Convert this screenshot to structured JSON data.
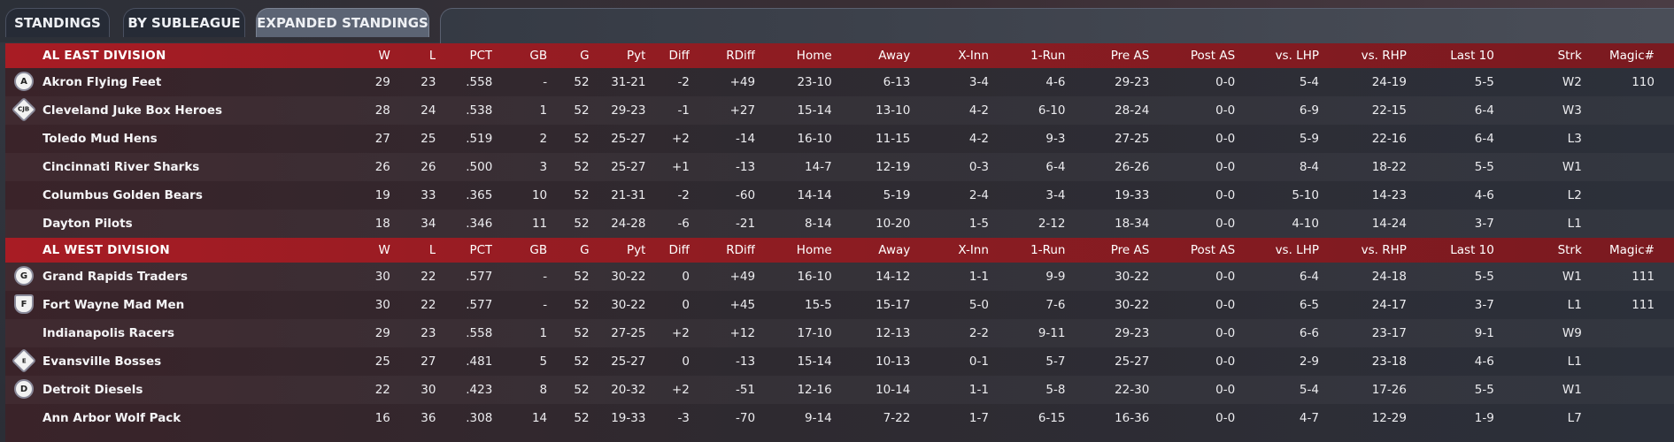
{
  "tabs": [
    {
      "label": "STANDINGS",
      "active": false
    },
    {
      "label": "BY SUBLEAGUE",
      "active": false
    },
    {
      "label": "EXPANDED STANDINGS",
      "active": true
    }
  ],
  "columns": [
    "W",
    "L",
    "PCT",
    "GB",
    "G",
    "Pyt",
    "Diff",
    "RDiff",
    "Home",
    "Away",
    "X-Inn",
    "1-Run",
    "Pre AS",
    "Post AS",
    "vs. LHP",
    "vs. RHP",
    "Last 10",
    "Strk",
    "Magic#"
  ],
  "colors": {
    "header_red": "#a81c24",
    "positive": "#4ee06a",
    "negative": "#f0605c"
  },
  "divisions": [
    {
      "name": "AL EAST DIVISION",
      "teams": [
        {
          "name": "Akron  Flying Feet",
          "logo": "A",
          "logo_shape": "circle",
          "W": "29",
          "L": "23",
          "PCT": ".558",
          "GB": "-",
          "G": "52",
          "Pyt": "31-21",
          "Diff": "-2",
          "RDiff": "+49",
          "Home": "23-10",
          "Away": "6-13",
          "X-Inn": "3-4",
          "1-Run": "4-6",
          "Pre AS": "29-23",
          "Post AS": "0-0",
          "vs. LHP": "5-4",
          "vs. RHP": "24-19",
          "Last 10": "5-5",
          "Strk": "W2",
          "Magic#": "110"
        },
        {
          "name": "Cleveland Juke Box Heroes",
          "logo": "CJB",
          "logo_shape": "diamond",
          "W": "28",
          "L": "24",
          "PCT": ".538",
          "GB": "1",
          "G": "52",
          "Pyt": "29-23",
          "Diff": "-1",
          "RDiff": "+27",
          "Home": "15-14",
          "Away": "13-10",
          "X-Inn": "4-2",
          "1-Run": "6-10",
          "Pre AS": "28-24",
          "Post AS": "0-0",
          "vs. LHP": "6-9",
          "vs. RHP": "22-15",
          "Last 10": "6-4",
          "Strk": "W3",
          "Magic#": ""
        },
        {
          "name": "Toledo  Mud Hens",
          "logo": "",
          "logo_shape": "none",
          "W": "27",
          "L": "25",
          "PCT": ".519",
          "GB": "2",
          "G": "52",
          "Pyt": "25-27",
          "Diff": "+2",
          "RDiff": "-14",
          "Home": "16-10",
          "Away": "11-15",
          "X-Inn": "4-2",
          "1-Run": "9-3",
          "Pre AS": "27-25",
          "Post AS": "0-0",
          "vs. LHP": "5-9",
          "vs. RHP": "22-16",
          "Last 10": "6-4",
          "Strk": "L3",
          "Magic#": ""
        },
        {
          "name": "Cincinnati River Sharks",
          "logo": "",
          "logo_shape": "none",
          "W": "26",
          "L": "26",
          "PCT": ".500",
          "GB": "3",
          "G": "52",
          "Pyt": "25-27",
          "Diff": "+1",
          "RDiff": "-13",
          "Home": "14-7",
          "Away": "12-19",
          "X-Inn": "0-3",
          "1-Run": "6-4",
          "Pre AS": "26-26",
          "Post AS": "0-0",
          "vs. LHP": "8-4",
          "vs. RHP": "18-22",
          "Last 10": "5-5",
          "Strk": "W1",
          "Magic#": ""
        },
        {
          "name": "Columbus Golden Bears",
          "logo": "",
          "logo_shape": "none",
          "W": "19",
          "L": "33",
          "PCT": ".365",
          "GB": "10",
          "G": "52",
          "Pyt": "21-31",
          "Diff": "-2",
          "RDiff": "-60",
          "Home": "14-14",
          "Away": "5-19",
          "X-Inn": "2-4",
          "1-Run": "3-4",
          "Pre AS": "19-33",
          "Post AS": "0-0",
          "vs. LHP": "5-10",
          "vs. RHP": "14-23",
          "Last 10": "4-6",
          "Strk": "L2",
          "Magic#": ""
        },
        {
          "name": "Dayton Pilots",
          "logo": "",
          "logo_shape": "none",
          "W": "18",
          "L": "34",
          "PCT": ".346",
          "GB": "11",
          "G": "52",
          "Pyt": "24-28",
          "Diff": "-6",
          "RDiff": "-21",
          "Home": "8-14",
          "Away": "10-20",
          "X-Inn": "1-5",
          "1-Run": "2-12",
          "Pre AS": "18-34",
          "Post AS": "0-0",
          "vs. LHP": "4-10",
          "vs. RHP": "14-24",
          "Last 10": "3-7",
          "Strk": "L1",
          "Magic#": ""
        }
      ]
    },
    {
      "name": "AL WEST DIVISION",
      "teams": [
        {
          "name": "Grand Rapids Traders",
          "logo": "G",
          "logo_shape": "circle",
          "W": "30",
          "L": "22",
          "PCT": ".577",
          "GB": "-",
          "G": "52",
          "Pyt": "30-22",
          "Diff": "0",
          "RDiff": "+49",
          "Home": "16-10",
          "Away": "14-12",
          "X-Inn": "1-1",
          "1-Run": "9-9",
          "Pre AS": "30-22",
          "Post AS": "0-0",
          "vs. LHP": "6-4",
          "vs. RHP": "24-18",
          "Last 10": "5-5",
          "Strk": "W1",
          "Magic#": "111"
        },
        {
          "name": "Fort Wayne Mad Men",
          "logo": "F",
          "logo_shape": "shield",
          "W": "30",
          "L": "22",
          "PCT": ".577",
          "GB": "-",
          "G": "52",
          "Pyt": "30-22",
          "Diff": "0",
          "RDiff": "+45",
          "Home": "15-5",
          "Away": "15-17",
          "X-Inn": "5-0",
          "1-Run": "7-6",
          "Pre AS": "30-22",
          "Post AS": "0-0",
          "vs. LHP": "6-5",
          "vs. RHP": "24-17",
          "Last 10": "3-7",
          "Strk": "L1",
          "Magic#": "111"
        },
        {
          "name": "Indianapolis Racers",
          "logo": "",
          "logo_shape": "none",
          "W": "29",
          "L": "23",
          "PCT": ".558",
          "GB": "1",
          "G": "52",
          "Pyt": "27-25",
          "Diff": "+2",
          "RDiff": "+12",
          "Home": "17-10",
          "Away": "12-13",
          "X-Inn": "2-2",
          "1-Run": "9-11",
          "Pre AS": "29-23",
          "Post AS": "0-0",
          "vs. LHP": "6-6",
          "vs. RHP": "23-17",
          "Last 10": "9-1",
          "Strk": "W9",
          "Magic#": ""
        },
        {
          "name": "Evansville Bosses",
          "logo": "E",
          "logo_shape": "diamond",
          "W": "25",
          "L": "27",
          "PCT": ".481",
          "GB": "5",
          "G": "52",
          "Pyt": "25-27",
          "Diff": "0",
          "RDiff": "-13",
          "Home": "15-14",
          "Away": "10-13",
          "X-Inn": "0-1",
          "1-Run": "5-7",
          "Pre AS": "25-27",
          "Post AS": "0-0",
          "vs. LHP": "2-9",
          "vs. RHP": "23-18",
          "Last 10": "4-6",
          "Strk": "L1",
          "Magic#": ""
        },
        {
          "name": "Detroit Diesels",
          "logo": "D",
          "logo_shape": "circle",
          "W": "22",
          "L": "30",
          "PCT": ".423",
          "GB": "8",
          "G": "52",
          "Pyt": "20-32",
          "Diff": "+2",
          "RDiff": "-51",
          "Home": "12-16",
          "Away": "10-14",
          "X-Inn": "1-1",
          "1-Run": "5-8",
          "Pre AS": "22-30",
          "Post AS": "0-0",
          "vs. LHP": "5-4",
          "vs. RHP": "17-26",
          "Last 10": "5-5",
          "Strk": "W1",
          "Magic#": ""
        },
        {
          "name": "Ann Arbor Wolf Pack",
          "logo": "",
          "logo_shape": "none",
          "W": "16",
          "L": "36",
          "PCT": ".308",
          "GB": "14",
          "G": "52",
          "Pyt": "19-33",
          "Diff": "-3",
          "RDiff": "-70",
          "Home": "9-14",
          "Away": "7-22",
          "X-Inn": "1-7",
          "1-Run": "6-15",
          "Pre AS": "16-36",
          "Post AS": "0-0",
          "vs. LHP": "4-7",
          "vs. RHP": "12-29",
          "Last 10": "1-9",
          "Strk": "L7",
          "Magic#": ""
        }
      ]
    }
  ]
}
